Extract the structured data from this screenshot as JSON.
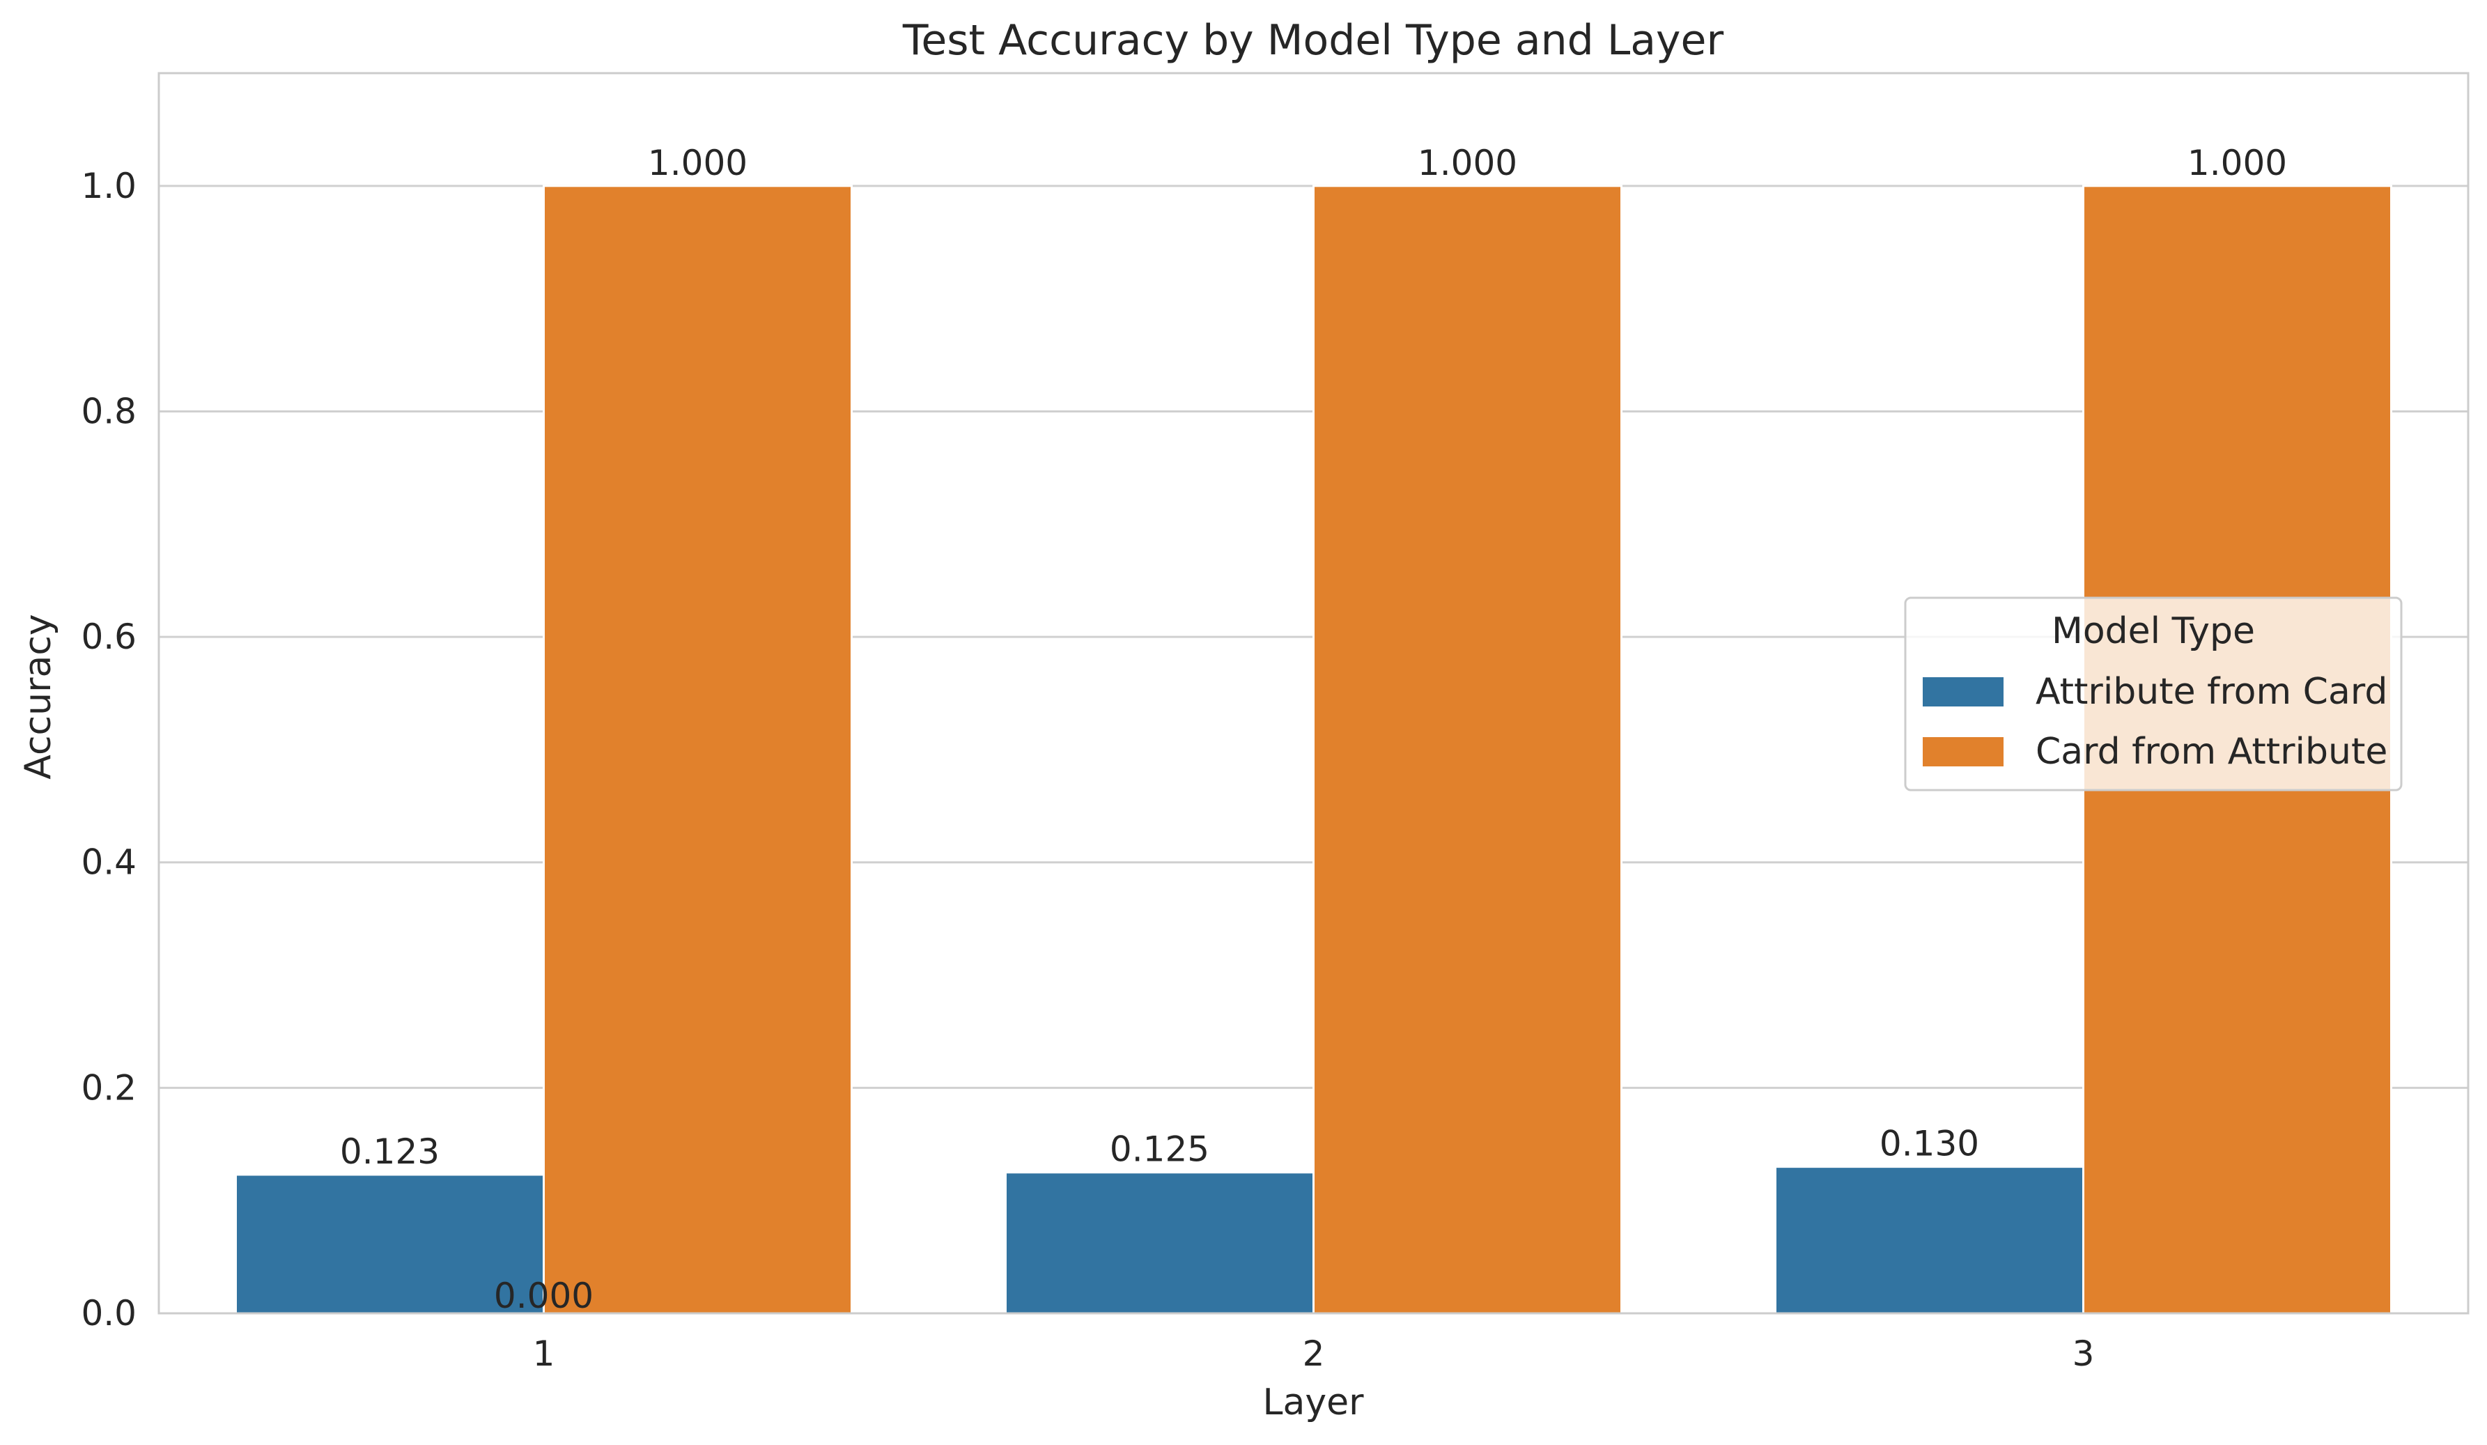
{
  "chart_data": {
    "type": "bar",
    "title": "Test Accuracy by Model Type and Layer",
    "xlabel": "Layer",
    "ylabel": "Accuracy",
    "categories": [
      "1",
      "2",
      "3"
    ],
    "ylim": [
      0,
      1.1
    ],
    "yticks": [
      "0.0",
      "0.2",
      "0.4",
      "0.6",
      "0.8",
      "1.0"
    ],
    "grid": "horizontal",
    "legend": {
      "title": "Model Type",
      "placement": "center-right"
    },
    "series": [
      {
        "name": "Attribute from Card",
        "color": "#3274a1",
        "values": [
          0.123,
          0.125,
          0.13
        ],
        "labels": [
          "0.123",
          "0.125",
          "0.130"
        ]
      },
      {
        "name": "Card from Attribute",
        "color": "#e1812c",
        "values": [
          1.0,
          1.0,
          1.0
        ],
        "labels": [
          "1.000",
          "1.000",
          "1.000"
        ]
      }
    ],
    "annotations": [
      {
        "text": "0.000",
        "category": "1",
        "value": 0.0
      }
    ]
  }
}
